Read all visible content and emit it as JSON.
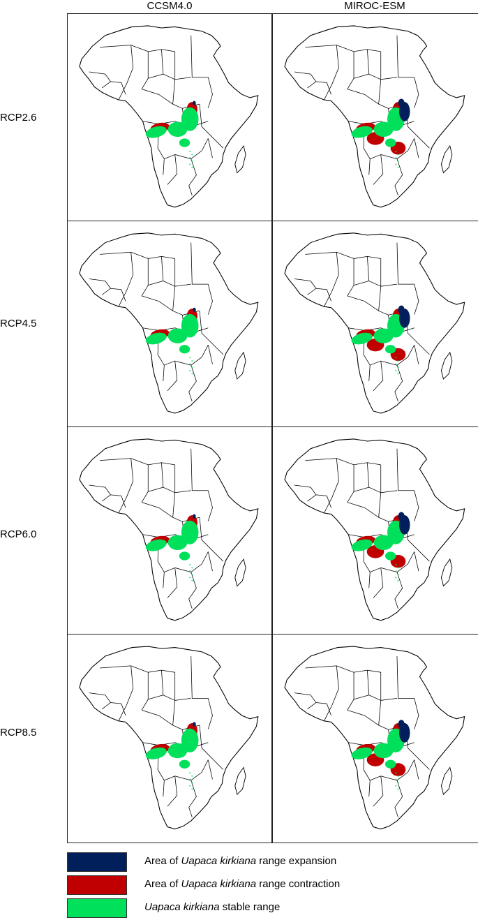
{
  "columns": [
    {
      "label": "CCSM4.0"
    },
    {
      "label": "MIROC-ESM"
    }
  ],
  "rows": [
    {
      "label": "RCP2.6"
    },
    {
      "label": "RCP4.5"
    },
    {
      "label": "RCP6.0"
    },
    {
      "label": "RCP8.5"
    }
  ],
  "legend": [
    {
      "key": "expansion",
      "color": "#001f5b",
      "pre": "Area of ",
      "species": "Uapaca kirkiana",
      "post": " range expansion"
    },
    {
      "key": "contraction",
      "color": "#c00000",
      "pre": "Area of ",
      "species": "Uapaca kirkiana",
      "post": " range contraction"
    },
    {
      "key": "stable",
      "color": "#00e05a",
      "pre": "",
      "species": "Uapaca kirkiana",
      "post": " stable range"
    }
  ],
  "colors": {
    "border": "#000000",
    "land": "#ffffff"
  }
}
